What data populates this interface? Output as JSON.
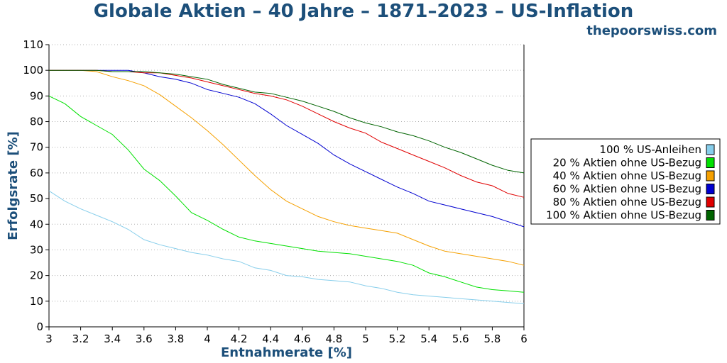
{
  "title": "Globale Aktien – 40 Jahre – 1871–2023 – US-Inflation",
  "site": "thepoorswiss.com",
  "chart_data": {
    "type": "line",
    "title": "Globale Aktien – 40 Jahre – 1871–2023 – US-Inflation",
    "xlabel": "Entnahmerate [%]",
    "ylabel": "Erfolgsrate [%]",
    "xlim": [
      3,
      6
    ],
    "ylim": [
      0,
      110
    ],
    "x_ticks": [
      "3",
      "3.2",
      "3.4",
      "3.6",
      "3.8",
      "4",
      "4.2",
      "4.4",
      "4.6",
      "4.8",
      "5",
      "5.2",
      "5.4",
      "5.6",
      "5.8",
      "6"
    ],
    "y_ticks": [
      "0",
      "10",
      "20",
      "30",
      "40",
      "50",
      "60",
      "70",
      "80",
      "90",
      "100",
      "110"
    ],
    "grid": "horizontal dotted",
    "legend_position": "right",
    "x": [
      3.0,
      3.1,
      3.2,
      3.3,
      3.4,
      3.5,
      3.6,
      3.7,
      3.8,
      3.9,
      4.0,
      4.1,
      4.2,
      4.3,
      4.4,
      4.5,
      4.6,
      4.7,
      4.8,
      4.9,
      5.0,
      5.1,
      5.2,
      5.3,
      5.4,
      5.5,
      5.6,
      5.7,
      5.8,
      5.9,
      6.0
    ],
    "series": [
      {
        "name": "100 % US-Anleihen",
        "color": "#87ceeb",
        "values": [
          53,
          49,
          46,
          43.5,
          41,
          38,
          34,
          32,
          30.5,
          29,
          28,
          26.5,
          25.5,
          23,
          22,
          20,
          19.5,
          18.5,
          18,
          17.5,
          16,
          15,
          13.5,
          12.5,
          12,
          11.5,
          11,
          10.5,
          10,
          9.5,
          9
        ]
      },
      {
        "name": "20 % Aktien ohne US-Bezug",
        "color": "#00e000",
        "values": [
          90,
          87,
          82,
          78.5,
          75,
          69,
          61.5,
          57,
          51,
          44.5,
          41.5,
          38,
          35,
          33.5,
          32.5,
          31.5,
          30.5,
          29.5,
          29,
          28.5,
          27.5,
          26.5,
          25.5,
          24,
          21,
          19.5,
          17.5,
          15.5,
          14.5,
          14,
          13.5
        ]
      },
      {
        "name": "40 % Aktien ohne US-Bezug",
        "color": "#f5a000",
        "values": [
          100,
          100,
          100,
          99.5,
          97.5,
          96,
          94,
          90.5,
          86,
          81.5,
          76.5,
          71,
          65,
          59,
          53.5,
          49,
          46,
          43,
          41,
          39.5,
          38.5,
          37.5,
          36.5,
          34,
          31.5,
          29.5,
          28.5,
          27.5,
          26.5,
          25.5,
          24
        ]
      },
      {
        "name": "60 % Aktien ohne US-Bezug",
        "color": "#0000d0",
        "values": [
          100,
          100,
          100,
          100,
          100,
          100,
          99,
          97.5,
          96.5,
          95,
          92.5,
          91,
          89.5,
          87,
          83,
          78.5,
          75,
          71.5,
          67,
          63.5,
          60.5,
          57.5,
          54.5,
          52,
          49,
          47.5,
          46,
          44.5,
          43,
          41,
          39
        ]
      },
      {
        "name": "80 % Aktien ohne US-Bezug",
        "color": "#e00000",
        "values": [
          100,
          100,
          100,
          100,
          99.5,
          99.5,
          99,
          99,
          98,
          97,
          95.5,
          94,
          92.5,
          91,
          90,
          88.5,
          86,
          83,
          80,
          77.5,
          75.5,
          72,
          69.5,
          67,
          64.5,
          62,
          59,
          56.5,
          55,
          52,
          50.5
        ]
      },
      {
        "name": "100 % Aktien ohne US-Bezug",
        "color": "#006400",
        "values": [
          100,
          100,
          100,
          100,
          99.5,
          99.5,
          99.5,
          99,
          98.5,
          97.5,
          96.5,
          94.5,
          93,
          91.5,
          91,
          89.5,
          88,
          86,
          84,
          81.5,
          79.5,
          78,
          76,
          74.5,
          72.5,
          70,
          68,
          65.5,
          63,
          61,
          60
        ]
      }
    ]
  }
}
